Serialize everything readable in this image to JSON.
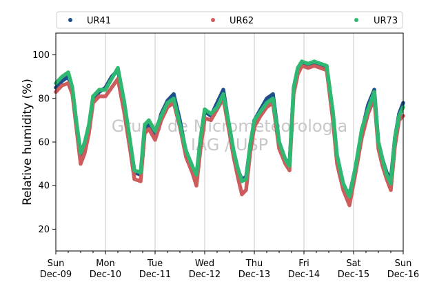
{
  "chart_data": {
    "type": "scatter",
    "title": "",
    "xlabel": "",
    "ylabel": "Relative humidity (%)",
    "ylim": [
      10,
      110
    ],
    "yticks": [
      20,
      40,
      60,
      80,
      100
    ],
    "xlim": [
      "2012-12-09T00:00",
      "2012-12-16T00:00"
    ],
    "x_ticks": [
      {
        "day": "Sun",
        "date": "Dec-09"
      },
      {
        "day": "Mon",
        "date": "Dec-10"
      },
      {
        "day": "Tue",
        "date": "Dec-11"
      },
      {
        "day": "Wed",
        "date": "Dec-12"
      },
      {
        "day": "Thu",
        "date": "Dec-13"
      },
      {
        "day": "Fri",
        "date": "Dec-14"
      },
      {
        "day": "Sat",
        "date": "Dec-15"
      },
      {
        "day": "Sun",
        "date": "Dec-16"
      }
    ],
    "grid": "vertical at day ticks",
    "legend_position": "top",
    "watermark": [
      "Grupo de Micrometeorologia",
      "IAG / USP"
    ],
    "series": [
      {
        "name": "UR41",
        "color": "#1f4e8c",
        "x": [
          "2012-12-09T00:00",
          "2012-12-09T03:00",
          "2012-12-09T06:00",
          "2012-12-09T08:00",
          "2012-12-09T10:00",
          "2012-12-09T12:00",
          "2012-12-09T14:00",
          "2012-12-09T16:00",
          "2012-12-09T18:00",
          "2012-12-09T21:00",
          "2012-12-10T00:00",
          "2012-12-10T03:00",
          "2012-12-10T06:00",
          "2012-12-10T09:00",
          "2012-12-10T12:00",
          "2012-12-10T14:00",
          "2012-12-10T17:00",
          "2012-12-10T19:00",
          "2012-12-10T21:00",
          "2012-12-11T00:00",
          "2012-12-11T03:00",
          "2012-12-11T06:00",
          "2012-12-11T09:00",
          "2012-12-11T12:00",
          "2012-12-11T15:00",
          "2012-12-11T18:00",
          "2012-12-11T20:00",
          "2012-12-11T22:00",
          "2012-12-12T00:00",
          "2012-12-12T03:00",
          "2012-12-12T06:00",
          "2012-12-12T09:00",
          "2012-12-12T12:00",
          "2012-12-12T14:00",
          "2012-12-12T16:00",
          "2012-12-12T18:00",
          "2012-12-12T20:00",
          "2012-12-12T22:00",
          "2012-12-13T00:00",
          "2012-12-13T03:00",
          "2012-12-13T06:00",
          "2012-12-13T09:00",
          "2012-12-13T12:00",
          "2012-12-13T15:00",
          "2012-12-13T17:00",
          "2012-12-13T19:00",
          "2012-12-13T21:00",
          "2012-12-13T23:00",
          "2012-12-14T02:00",
          "2012-12-14T05:00",
          "2012-12-14T08:00",
          "2012-12-14T11:00",
          "2012-12-14T14:00",
          "2012-12-14T16:00",
          "2012-12-14T19:00",
          "2012-12-14T22:00",
          "2012-12-15T01:00",
          "2012-12-15T04:00",
          "2012-12-15T07:00",
          "2012-12-15T10:00",
          "2012-12-15T12:00",
          "2012-12-15T14:00",
          "2012-12-15T16:00",
          "2012-12-15T18:00",
          "2012-12-15T20:00",
          "2012-12-15T22:00",
          "2012-12-16T00:00"
        ],
        "y": [
          85,
          88,
          90,
          84,
          68,
          54,
          58,
          66,
          80,
          83,
          85,
          90,
          93,
          78,
          58,
          46,
          45,
          66,
          68,
          63,
          73,
          79,
          82,
          70,
          55,
          48,
          44,
          60,
          74,
          72,
          78,
          84,
          66,
          55,
          47,
          43,
          44,
          58,
          70,
          75,
          80,
          82,
          60,
          52,
          50,
          84,
          93,
          96,
          95,
          96,
          95,
          94,
          72,
          52,
          40,
          36,
          48,
          65,
          77,
          84,
          60,
          52,
          46,
          43,
          62,
          73,
          78
        ]
      },
      {
        "name": "UR62",
        "color": "#cd5c5c",
        "x": [
          "2012-12-09T00:00",
          "2012-12-09T03:00",
          "2012-12-09T06:00",
          "2012-12-09T08:00",
          "2012-12-09T10:00",
          "2012-12-09T12:00",
          "2012-12-09T14:00",
          "2012-12-09T16:00",
          "2012-12-09T18:00",
          "2012-12-09T21:00",
          "2012-12-10T00:00",
          "2012-12-10T03:00",
          "2012-12-10T06:00",
          "2012-12-10T09:00",
          "2012-12-10T12:00",
          "2012-12-10T14:00",
          "2012-12-10T17:00",
          "2012-12-10T19:00",
          "2012-12-10T21:00",
          "2012-12-11T00:00",
          "2012-12-11T03:00",
          "2012-12-11T06:00",
          "2012-12-11T09:00",
          "2012-12-11T12:00",
          "2012-12-11T15:00",
          "2012-12-11T18:00",
          "2012-12-11T20:00",
          "2012-12-11T22:00",
          "2012-12-12T00:00",
          "2012-12-12T03:00",
          "2012-12-12T06:00",
          "2012-12-12T09:00",
          "2012-12-12T12:00",
          "2012-12-12T14:00",
          "2012-12-12T16:00",
          "2012-12-12T18:00",
          "2012-12-12T20:00",
          "2012-12-12T22:00",
          "2012-12-13T00:00",
          "2012-12-13T03:00",
          "2012-12-13T06:00",
          "2012-12-13T09:00",
          "2012-12-13T12:00",
          "2012-12-13T15:00",
          "2012-12-13T17:00",
          "2012-12-13T19:00",
          "2012-12-13T21:00",
          "2012-12-13T23:00",
          "2012-12-14T02:00",
          "2012-12-14T05:00",
          "2012-12-14T08:00",
          "2012-12-14T11:00",
          "2012-12-14T14:00",
          "2012-12-14T16:00",
          "2012-12-14T19:00",
          "2012-12-14T22:00",
          "2012-12-15T01:00",
          "2012-12-15T04:00",
          "2012-12-15T07:00",
          "2012-12-15T10:00",
          "2012-12-15T12:00",
          "2012-12-15T14:00",
          "2012-12-15T16:00",
          "2012-12-15T18:00",
          "2012-12-15T20:00",
          "2012-12-15T22:00",
          "2012-12-16T00:00"
        ],
        "y": [
          83,
          86,
          87,
          82,
          66,
          50,
          55,
          64,
          78,
          81,
          81,
          85,
          89,
          74,
          56,
          43,
          42,
          64,
          66,
          61,
          70,
          76,
          78,
          67,
          53,
          46,
          40,
          57,
          71,
          70,
          75,
          80,
          64,
          53,
          44,
          36,
          38,
          55,
          67,
          72,
          76,
          78,
          57,
          50,
          47,
          82,
          91,
          95,
          94,
          95,
          94,
          93,
          70,
          50,
          38,
          31,
          46,
          62,
          73,
          80,
          57,
          49,
          43,
          38,
          58,
          70,
          72
        ]
      },
      {
        "name": "UR73",
        "color": "#2eb872",
        "x": [
          "2012-12-09T00:00",
          "2012-12-09T03:00",
          "2012-12-09T06:00",
          "2012-12-09T08:00",
          "2012-12-09T10:00",
          "2012-12-09T12:00",
          "2012-12-09T14:00",
          "2012-12-09T16:00",
          "2012-12-09T18:00",
          "2012-12-09T21:00",
          "2012-12-10T00:00",
          "2012-12-10T03:00",
          "2012-12-10T06:00",
          "2012-12-10T09:00",
          "2012-12-10T12:00",
          "2012-12-10T14:00",
          "2012-12-10T17:00",
          "2012-12-10T19:00",
          "2012-12-10T21:00",
          "2012-12-11T00:00",
          "2012-12-11T03:00",
          "2012-12-11T06:00",
          "2012-12-11T09:00",
          "2012-12-11T12:00",
          "2012-12-11T15:00",
          "2012-12-11T18:00",
          "2012-12-11T20:00",
          "2012-12-11T22:00",
          "2012-12-12T00:00",
          "2012-12-12T03:00",
          "2012-12-12T06:00",
          "2012-12-12T09:00",
          "2012-12-12T12:00",
          "2012-12-12T14:00",
          "2012-12-12T16:00",
          "2012-12-12T18:00",
          "2012-12-12T20:00",
          "2012-12-12T22:00",
          "2012-12-13T00:00",
          "2012-12-13T03:00",
          "2012-12-13T06:00",
          "2012-12-13T09:00",
          "2012-12-13T12:00",
          "2012-12-13T15:00",
          "2012-12-13T17:00",
          "2012-12-13T19:00",
          "2012-12-13T21:00",
          "2012-12-13T23:00",
          "2012-12-14T02:00",
          "2012-12-14T05:00",
          "2012-12-14T08:00",
          "2012-12-14T11:00",
          "2012-12-14T14:00",
          "2012-12-14T16:00",
          "2012-12-14T19:00",
          "2012-12-14T22:00",
          "2012-12-15T01:00",
          "2012-12-15T04:00",
          "2012-12-15T07:00",
          "2012-12-15T10:00",
          "2012-12-15T12:00",
          "2012-12-15T14:00",
          "2012-12-15T16:00",
          "2012-12-15T18:00",
          "2012-12-15T20:00",
          "2012-12-15T22:00",
          "2012-12-16T00:00"
        ],
        "y": [
          87,
          90,
          92,
          85,
          69,
          55,
          60,
          68,
          81,
          84,
          84,
          89,
          94,
          79,
          60,
          47,
          46,
          68,
          70,
          65,
          72,
          78,
          80,
          68,
          56,
          49,
          45,
          62,
          75,
          73,
          76,
          82,
          67,
          56,
          48,
          42,
          43,
          59,
          70,
          74,
          78,
          80,
          60,
          52,
          49,
          85,
          94,
          97,
          96,
          97,
          96,
          95,
          74,
          54,
          41,
          35,
          49,
          66,
          75,
          83,
          60,
          52,
          45,
          41,
          62,
          72,
          76
        ]
      }
    ]
  }
}
